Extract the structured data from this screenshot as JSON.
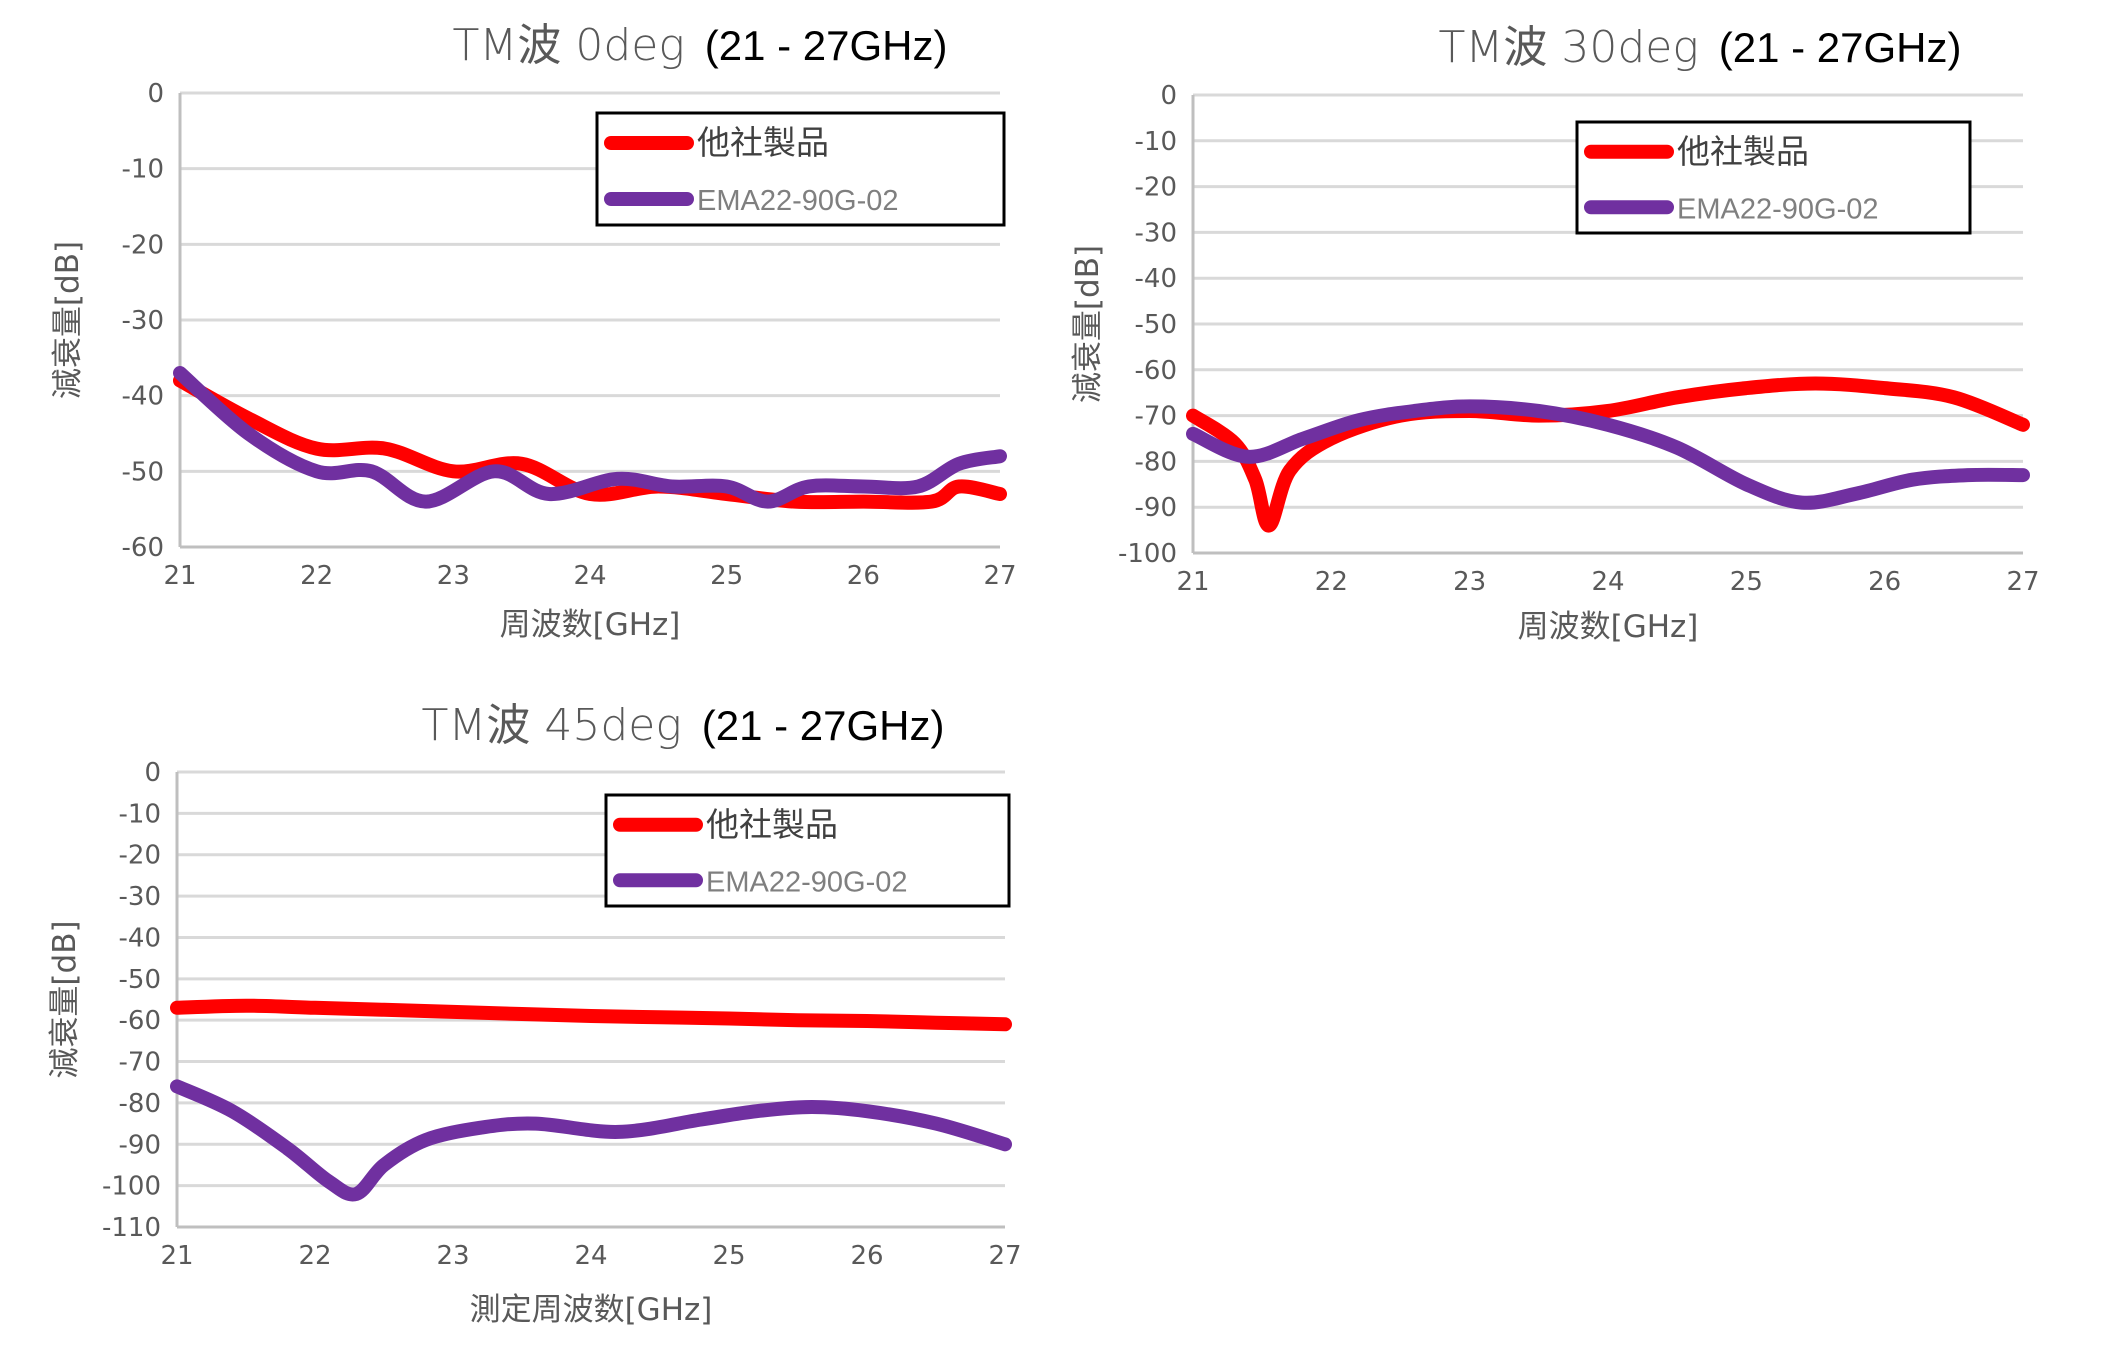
{
  "chart_data": [
    {
      "type": "line",
      "title_main": "TM波 0deg",
      "title_range": "(21 - 27GHz)",
      "xlabel": "周波数[GHz]",
      "ylabel": "減衰量[dB]",
      "xlim": [
        21,
        27
      ],
      "ylim": [
        -60,
        0
      ],
      "xticks": [
        "21",
        "22",
        "23",
        "24",
        "25",
        "26",
        "27"
      ],
      "yticks": [
        "0",
        "-10",
        "-20",
        "-30",
        "-40",
        "-50",
        "-60"
      ],
      "legend_position": "top-right",
      "series": [
        {
          "name": "他社製品",
          "color": "#ff0000",
          "x": [
            21,
            21.5,
            22,
            22.5,
            23,
            23.5,
            24,
            24.5,
            25,
            25.5,
            26,
            26.5,
            26.7,
            27
          ],
          "y": [
            -38,
            -43,
            -47,
            -47,
            -50,
            -49,
            -53,
            -52,
            -53,
            -54,
            -54,
            -54,
            -52,
            -53
          ]
        },
        {
          "name": "EMA22-90G-02",
          "color": "#7030a0",
          "x": [
            21,
            21.5,
            22,
            22.4,
            22.8,
            23.3,
            23.7,
            24.2,
            24.6,
            25,
            25.3,
            25.6,
            26,
            26.4,
            26.7,
            27
          ],
          "y": [
            -37,
            -45,
            -50,
            -50,
            -54,
            -50,
            -53,
            -51,
            -52,
            -52,
            -54,
            -52,
            -52,
            -52,
            -49,
            -48
          ]
        }
      ]
    },
    {
      "type": "line",
      "title_main": "TM波 30deg",
      "title_range": "(21 - 27GHz)",
      "xlabel": "周波数[GHz]",
      "ylabel": "減衰量[dB]",
      "xlim": [
        21,
        27
      ],
      "ylim": [
        -100,
        0
      ],
      "xticks": [
        "21",
        "22",
        "23",
        "24",
        "25",
        "26",
        "27"
      ],
      "yticks": [
        "0",
        "-10",
        "-20",
        "-30",
        "-40",
        "-50",
        "-60",
        "-70",
        "-80",
        "-90",
        "-100"
      ],
      "legend_position": "top-right",
      "series": [
        {
          "name": "他社製品",
          "color": "#ff0000",
          "x": [
            21,
            21.3,
            21.45,
            21.55,
            21.7,
            22,
            22.5,
            23,
            23.5,
            24,
            24.5,
            25,
            25.5,
            26,
            26.5,
            27
          ],
          "y": [
            -70,
            -76,
            -84,
            -94,
            -82,
            -75,
            -70,
            -69,
            -70,
            -69,
            -66,
            -64,
            -63,
            -64,
            -66,
            -72
          ]
        },
        {
          "name": "EMA22-90G-02",
          "color": "#7030a0",
          "x": [
            21,
            21.4,
            21.8,
            22.2,
            22.6,
            23,
            23.5,
            24,
            24.5,
            25,
            25.4,
            25.8,
            26.2,
            26.6,
            27
          ],
          "y": [
            -74,
            -79,
            -75,
            -71,
            -69,
            -68,
            -69,
            -72,
            -77,
            -85,
            -89,
            -87,
            -84,
            -83,
            -83
          ]
        }
      ]
    },
    {
      "type": "line",
      "title_main": "TM波 45deg",
      "title_range": "(21 - 27GHz)",
      "xlabel": "測定周波数[GHz]",
      "ylabel": "減衰量[dB]",
      "xlim": [
        21,
        27
      ],
      "ylim": [
        -110,
        0
      ],
      "xticks": [
        "21",
        "22",
        "23",
        "24",
        "25",
        "26",
        "27"
      ],
      "yticks": [
        "0",
        "-10",
        "-20",
        "-30",
        "-40",
        "-50",
        "-60",
        "-70",
        "-80",
        "-90",
        "-100",
        "-110"
      ],
      "legend_position": "top-right",
      "series": [
        {
          "name": "他社製品",
          "color": "#ff0000",
          "x": [
            21,
            21.5,
            22,
            22.5,
            23,
            23.5,
            24,
            24.5,
            25,
            25.5,
            26,
            26.5,
            27
          ],
          "y": [
            -57,
            -56.5,
            -57,
            -57.5,
            -58,
            -58.5,
            -59,
            -59.3,
            -59.6,
            -60,
            -60.2,
            -60.6,
            -61
          ]
        },
        {
          "name": "EMA22-90G-02",
          "color": "#7030a0",
          "x": [
            21,
            21.4,
            21.8,
            22.1,
            22.3,
            22.5,
            22.8,
            23.2,
            23.6,
            24.2,
            24.8,
            25.2,
            25.6,
            26,
            26.5,
            27
          ],
          "y": [
            -76,
            -82,
            -91,
            -99,
            -102,
            -95,
            -89,
            -86,
            -85,
            -87,
            -84,
            -82,
            -81,
            -82,
            -85,
            -90
          ]
        }
      ]
    }
  ]
}
